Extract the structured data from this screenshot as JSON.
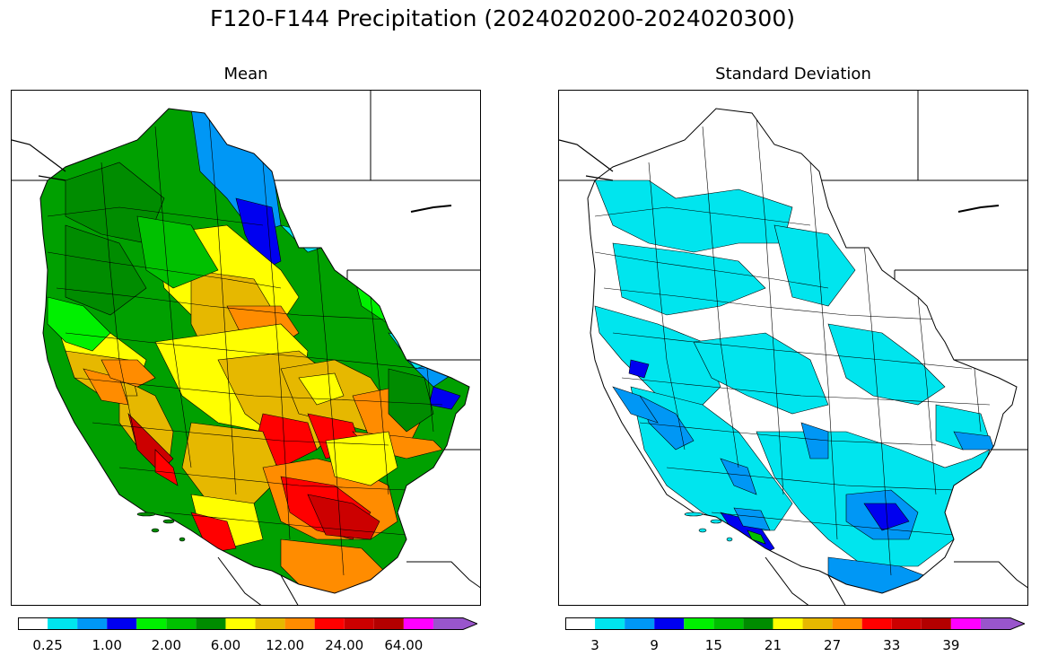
{
  "figure": {
    "title": "F120-F144 Precipitation (2024020200-2024020300)"
  },
  "panels": [
    {
      "id": "mean",
      "title": "Mean",
      "colorbar": {
        "colors": [
          "#ffffff",
          "#00e5ee",
          "#0097f5",
          "#0000f0",
          "#00f000",
          "#00c000",
          "#008c00",
          "#ffff00",
          "#e6b800",
          "#ff8c00",
          "#ff0000",
          "#cc0000",
          "#b30000",
          "#ff00ff",
          "#9955cc"
        ],
        "tick_labels": [
          "0.25",
          "1.00",
          "2.00",
          "6.00",
          "12.00",
          "24.00",
          "64.00"
        ],
        "extend": "max"
      }
    },
    {
      "id": "stddev",
      "title": "Standard Deviation",
      "colorbar": {
        "colors": [
          "#ffffff",
          "#00e5ee",
          "#0097f5",
          "#0000f0",
          "#00f000",
          "#00c000",
          "#008c00",
          "#ffff00",
          "#e6b800",
          "#ff8c00",
          "#ff0000",
          "#cc0000",
          "#b30000",
          "#ff00ff",
          "#9955cc"
        ],
        "tick_labels": [
          "3",
          "9",
          "15",
          "21",
          "27",
          "33",
          "39"
        ],
        "extend": "max"
      }
    }
  ]
}
